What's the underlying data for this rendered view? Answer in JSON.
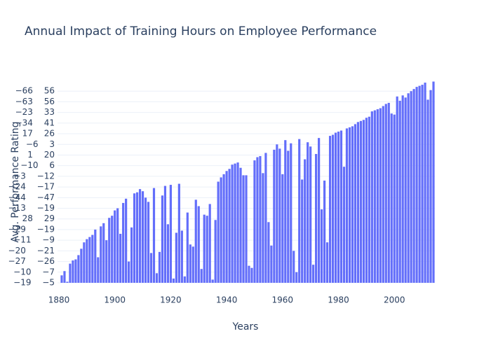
{
  "chart_data": {
    "type": "bar",
    "title": "Annual Impact of Training Hours on Employee Performance",
    "x_label": "Years",
    "y_label": "Avg. Performance Rating",
    "color": "#636efa",
    "grid": true,
    "xlim": [
      1879.5,
      2014.5
    ],
    "xticks": [
      1880,
      1900,
      1920,
      1940,
      1960,
      1980,
      2000
    ],
    "ylim": [
      0,
      19
    ],
    "yticks": [
      {
        "value": 0,
        "label": "−19 −5"
      },
      {
        "value": 1,
        "label": "−10 −7"
      },
      {
        "value": 2,
        "label": "−27 −26"
      },
      {
        "value": 3,
        "label": "−20 −21"
      },
      {
        "value": 4,
        "label": "−11 −9"
      },
      {
        "value": 5,
        "label": "−29 −19"
      },
      {
        "value": 6,
        "label": "28 29"
      },
      {
        "value": 7,
        "label": "−13 −19"
      },
      {
        "value": 8,
        "label": "−44 −47"
      },
      {
        "value": 9,
        "label": "−24 −17"
      },
      {
        "value": 10,
        "label": "−3 −12"
      },
      {
        "value": 11,
        "label": "−10 6"
      },
      {
        "value": 12,
        "label": "1 20"
      },
      {
        "value": 13,
        "label": "−6 3"
      },
      {
        "value": 14,
        "label": "17 26"
      },
      {
        "value": 15,
        "label": "−34 41"
      },
      {
        "value": 16,
        "label": "−23 33"
      },
      {
        "value": 17,
        "label": "−63 56"
      },
      {
        "value": 18,
        "label": "−66 56"
      }
    ],
    "x": [
      1881,
      1882,
      1883,
      1884,
      1885,
      1886,
      1887,
      1888,
      1889,
      1890,
      1891,
      1892,
      1893,
      1894,
      1895,
      1896,
      1897,
      1898,
      1899,
      1900,
      1901,
      1902,
      1903,
      1904,
      1905,
      1906,
      1907,
      1908,
      1909,
      1910,
      1911,
      1912,
      1913,
      1914,
      1915,
      1916,
      1917,
      1918,
      1919,
      1920,
      1921,
      1922,
      1923,
      1924,
      1925,
      1926,
      1927,
      1928,
      1929,
      1930,
      1931,
      1932,
      1933,
      1934,
      1935,
      1936,
      1937,
      1938,
      1939,
      1940,
      1941,
      1942,
      1943,
      1944,
      1945,
      1946,
      1947,
      1948,
      1949,
      1950,
      1951,
      1952,
      1953,
      1954,
      1955,
      1956,
      1957,
      1958,
      1959,
      1960,
      1961,
      1962,
      1963,
      1964,
      1965,
      1966,
      1967,
      1968,
      1969,
      1970,
      1971,
      1972,
      1973,
      1974,
      1975,
      1976,
      1977,
      1978,
      1979,
      1980,
      1981,
      1982,
      1983,
      1984,
      1985,
      1986,
      1987,
      1988,
      1989,
      1990,
      1991,
      1992,
      1993,
      1994,
      1995,
      1996,
      1997,
      1998,
      1999,
      2000,
      2001,
      2002,
      2003,
      2004,
      2005,
      2006,
      2007,
      2008,
      2009,
      2010,
      2011,
      2012,
      2013,
      2014
    ],
    "values": [
      0.7,
      1.1,
      0.1,
      1.8,
      2.1,
      2.2,
      2.6,
      3.2,
      3.8,
      4.1,
      4.3,
      4.5,
      5.0,
      2.4,
      5.3,
      5.6,
      4.0,
      6.1,
      6.3,
      6.8,
      7.0,
      4.6,
      7.5,
      7.9,
      2.0,
      5.2,
      8.4,
      8.5,
      8.8,
      8.6,
      8.0,
      7.6,
      2.8,
      8.9,
      0.9,
      2.9,
      8.2,
      9.1,
      5.5,
      9.2,
      0.4,
      4.7,
      9.3,
      4.9,
      0.6,
      6.6,
      3.6,
      3.4,
      7.8,
      7.2,
      1.3,
      6.4,
      6.3,
      7.4,
      0.3,
      5.9,
      9.5,
      9.9,
      10.2,
      10.5,
      10.7,
      11.1,
      11.2,
      11.3,
      10.8,
      10.1,
      10.1,
      1.6,
      1.4,
      11.5,
      11.8,
      11.9,
      10.3,
      12.2,
      5.7,
      3.5,
      12.5,
      13.0,
      12.6,
      10.2,
      13.4,
      12.4,
      13.1,
      3.0,
      1.0,
      13.5,
      9.7,
      11.6,
      13.2,
      12.8,
      1.7,
      12.1,
      13.6,
      6.9,
      9.6,
      3.8,
      13.8,
      13.9,
      14.1,
      14.2,
      14.3,
      10.9,
      14.5,
      14.6,
      14.7,
      14.9,
      15.1,
      15.2,
      15.3,
      15.5,
      15.6,
      16.1,
      16.2,
      16.3,
      16.4,
      16.6,
      16.8,
      16.9,
      15.9,
      15.8,
      17.5,
      17.1,
      17.6,
      17.4,
      17.8,
      18.0,
      18.2,
      18.4,
      18.5,
      18.6,
      18.8,
      17.2,
      18.1,
      18.9
    ]
  }
}
